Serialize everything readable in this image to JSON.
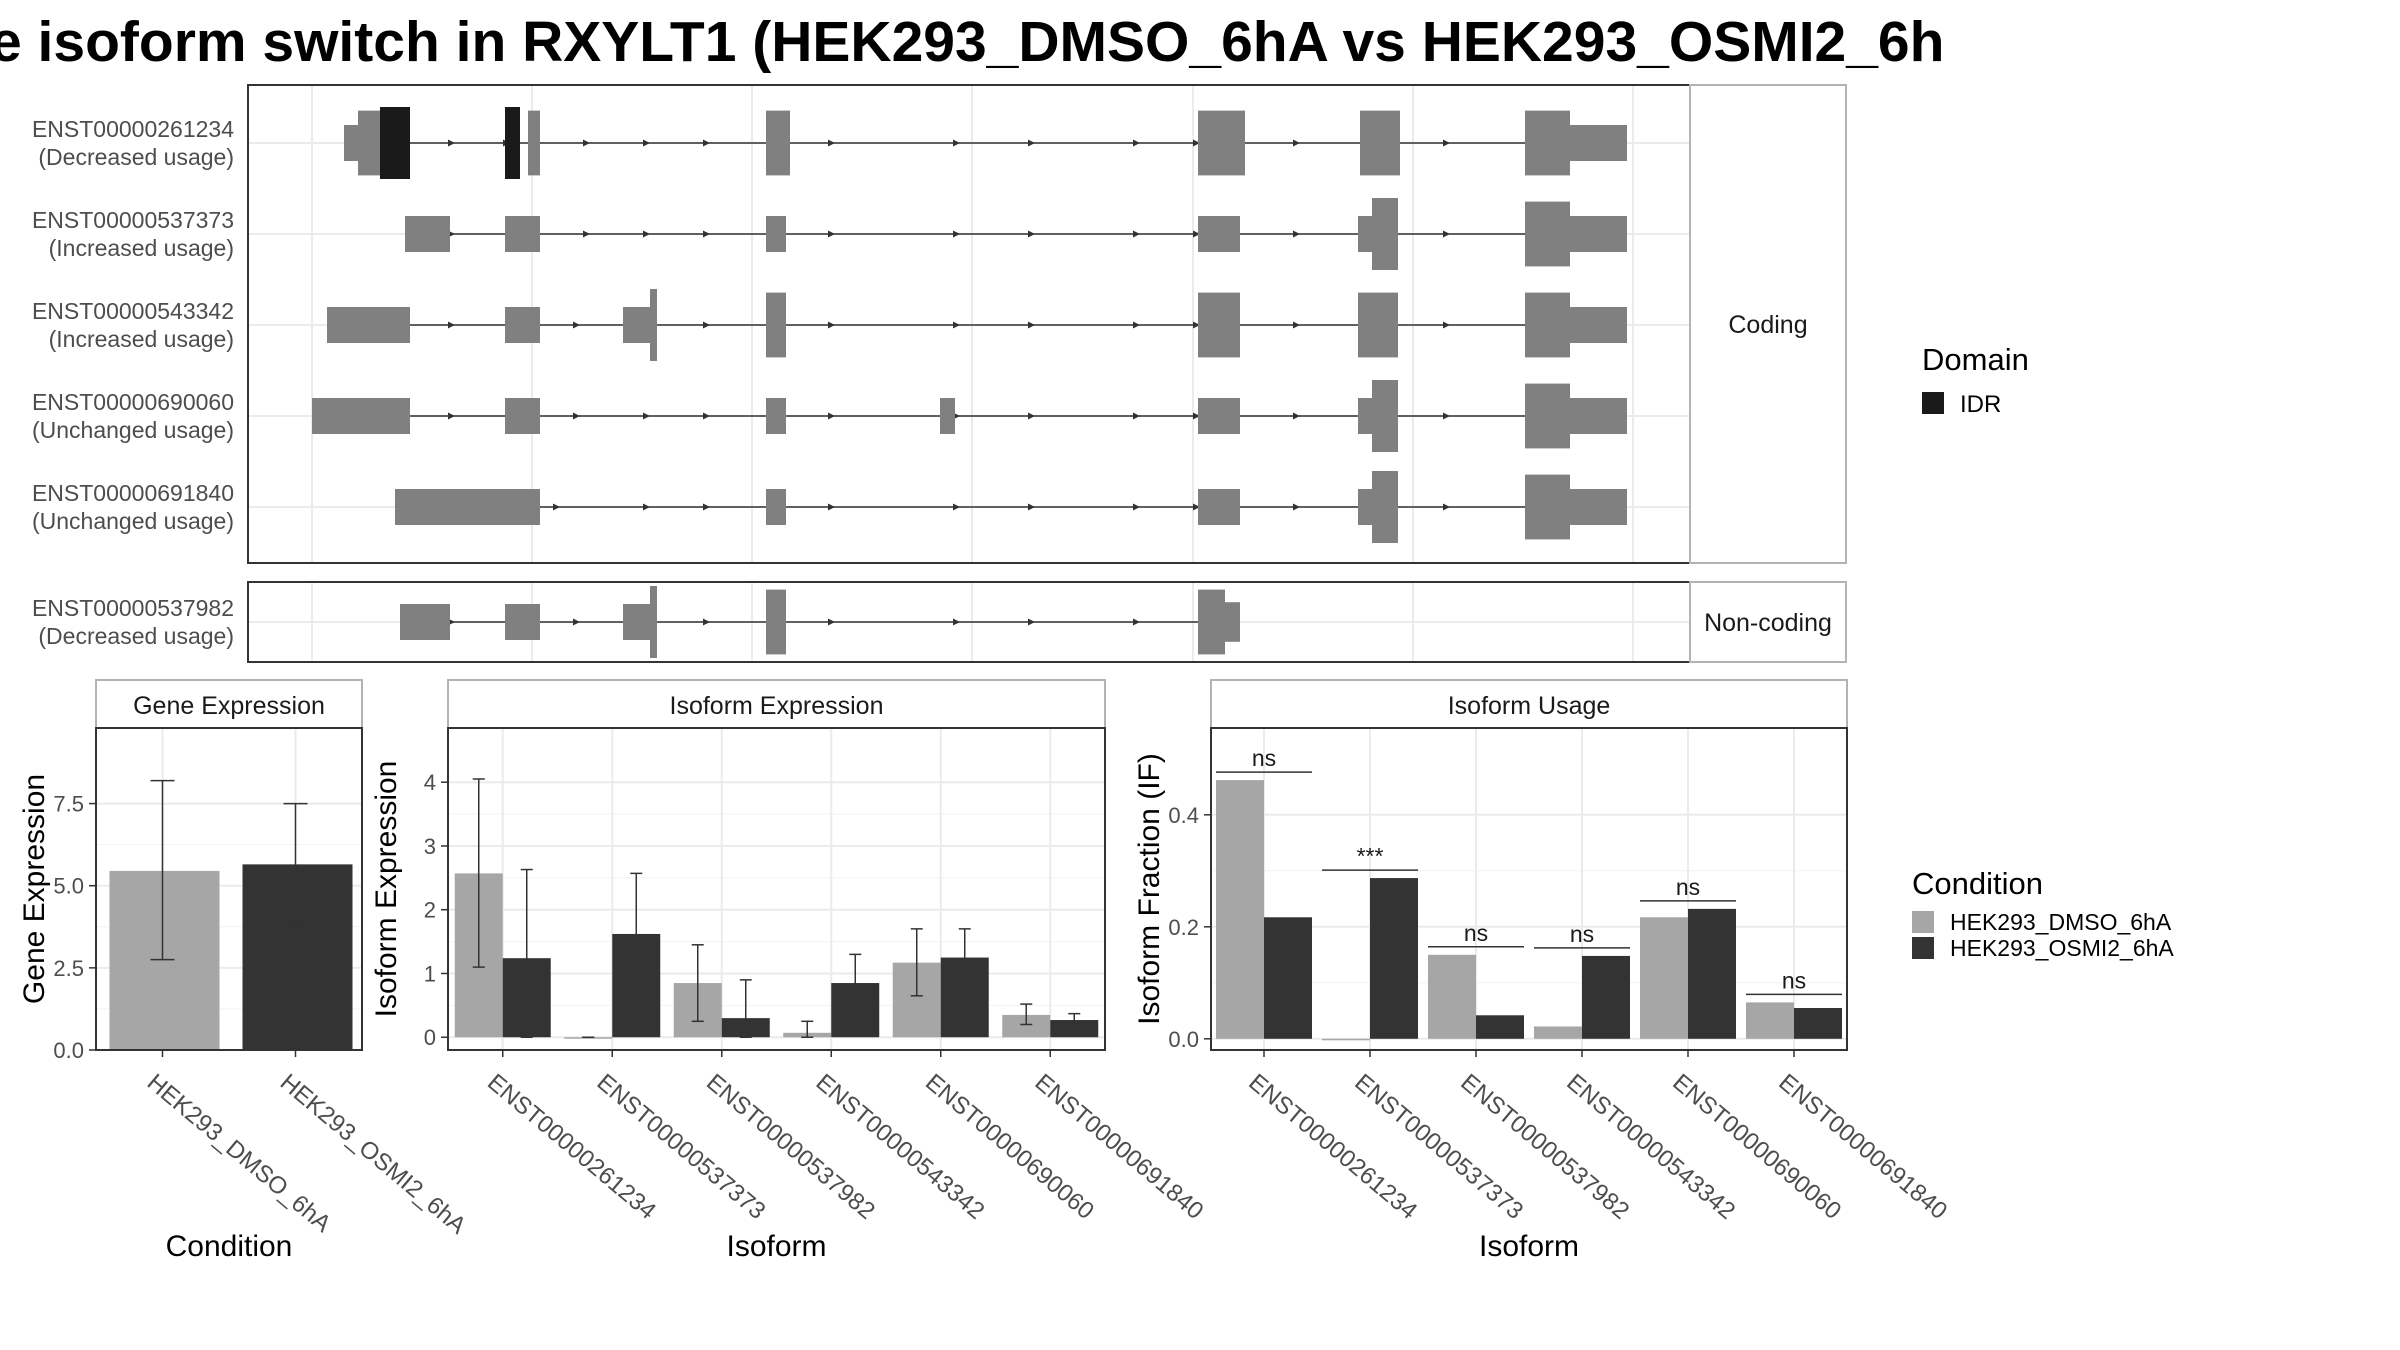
{
  "title": "e isoform switch in RXYLT1 (HEK293_DMSO_6hA vs HEK293_OSMI2_6h",
  "colors": {
    "exon": "#808080",
    "domain_idr": "#1a1a1a",
    "dmso": "#a6a6a6",
    "osmi2": "#333333",
    "grid": "#ebebeb",
    "panel_border": "#333333",
    "strip_border": "#b3b3b3"
  },
  "chart_data": [
    {
      "type": "gene-structure",
      "facets": [
        {
          "label": "Coding",
          "transcripts": [
            {
              "id": "ENST00000261234",
              "status": "(Decreased usage)"
            },
            {
              "id": "ENST00000537373",
              "status": "(Increased usage)"
            },
            {
              "id": "ENST00000543342",
              "status": "(Increased usage)"
            },
            {
              "id": "ENST00000690060",
              "status": "(Unchanged usage)"
            },
            {
              "id": "ENST00000691840",
              "status": "(Unchanged usage)"
            }
          ]
        },
        {
          "label": "Non-coding",
          "transcripts": [
            {
              "id": "ENST00000537982",
              "status": "(Decreased usage)"
            }
          ]
        }
      ],
      "legend": {
        "title": "Domain",
        "items": [
          {
            "label": "IDR",
            "color": "#1a1a1a"
          }
        ]
      }
    },
    {
      "type": "bar",
      "title": "Gene Expression",
      "xlabel": "Condition",
      "ylabel": "Gene Expression",
      "ylim": [
        0,
        9.8
      ],
      "yticks": [
        0.0,
        2.5,
        5.0,
        7.5
      ],
      "ytick_labels": [
        "0.0",
        "2.5",
        "5.0",
        "7.5"
      ],
      "categories": [
        "HEK293_DMSO_6hA",
        "HEK293_OSMI2_6hA"
      ],
      "values": [
        5.45,
        5.65
      ],
      "errors": [
        [
          2.75,
          8.2
        ],
        [
          3.8,
          7.5
        ]
      ]
    },
    {
      "type": "bar",
      "title": "Isoform Expression",
      "xlabel": "Isoform",
      "ylabel": "Isoform Expression",
      "ylim": [
        -0.2,
        4.85
      ],
      "yticks": [
        0,
        1,
        2,
        3,
        4
      ],
      "ytick_labels": [
        "0",
        "1",
        "2",
        "3",
        "4"
      ],
      "categories": [
        "ENST00000261234",
        "ENST00000537373",
        "ENST00000537982",
        "ENST00000543342",
        "ENST00000690060",
        "ENST00000691840"
      ],
      "series": [
        {
          "name": "HEK293_DMSO_6hA",
          "values": [
            2.57,
            0.0,
            0.85,
            0.07,
            1.17,
            0.35
          ],
          "errors": [
            [
              1.1,
              4.05
            ],
            [
              0.0,
              0.0
            ],
            [
              0.25,
              1.45
            ],
            [
              0.0,
              0.25
            ],
            [
              0.65,
              1.7
            ],
            [
              0.2,
              0.52
            ]
          ]
        },
        {
          "name": "HEK293_OSMI2_6hA",
          "values": [
            1.24,
            1.62,
            0.3,
            0.85,
            1.25,
            0.27
          ],
          "errors": [
            [
              0.0,
              2.63
            ],
            [
              0.68,
              2.57
            ],
            [
              0.0,
              0.9
            ],
            [
              0.42,
              1.3
            ],
            [
              0.8,
              1.7
            ],
            [
              0.18,
              0.37
            ]
          ]
        }
      ]
    },
    {
      "type": "bar",
      "title": "Isoform Usage",
      "xlabel": "Isoform",
      "ylabel": "Isoform Fraction (IF)",
      "ylim": [
        -0.02,
        0.555
      ],
      "yticks": [
        0.0,
        0.2,
        0.4
      ],
      "ytick_labels": [
        "0.0",
        "0.2",
        "0.4"
      ],
      "categories": [
        "ENST00000261234",
        "ENST00000537373",
        "ENST00000537982",
        "ENST00000543342",
        "ENST00000690060",
        "ENST00000691840"
      ],
      "series": [
        {
          "name": "HEK293_DMSO_6hA",
          "values": [
            0.462,
            0.0,
            0.15,
            0.022,
            0.217,
            0.065
          ]
        },
        {
          "name": "HEK293_OSMI2_6hA",
          "values": [
            0.217,
            0.287,
            0.042,
            0.148,
            0.232,
            0.055
          ]
        }
      ],
      "annotations": [
        "ns",
        "***",
        "ns",
        "ns",
        "ns",
        "ns"
      ],
      "legend": {
        "title": "Condition",
        "items": [
          {
            "label": "HEK293_DMSO_6hA",
            "color": "#a6a6a6"
          },
          {
            "label": "HEK293_OSMI2_6hA",
            "color": "#333333"
          }
        ]
      }
    }
  ]
}
